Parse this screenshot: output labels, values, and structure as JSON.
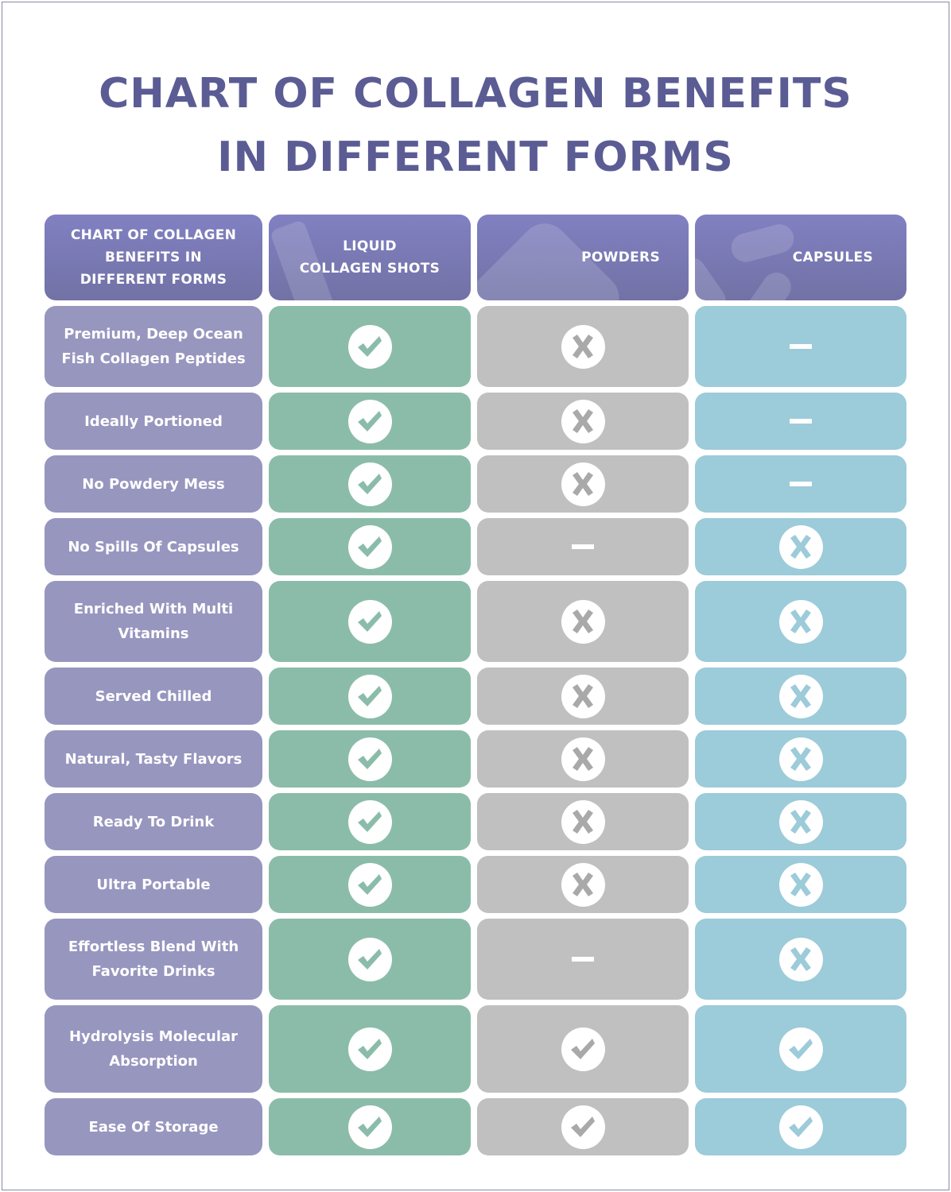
{
  "title_lines": [
    "CHART OF COLLAGEN BENEFITS",
    "IN DIFFERENT FORMS"
  ],
  "colors": {
    "title": "#5b5c94",
    "header": "#7e7cbd",
    "label": "#9796bf",
    "liquid": "#8bbcaa",
    "powders": "#c0c0c0",
    "capsules": "#9ccbd9"
  },
  "chart_data": {
    "type": "table",
    "corner_header": [
      "CHART OF COLLAGEN",
      "BENEFITS IN",
      "DIFFERENT FORMS"
    ],
    "columns": [
      {
        "label": [
          "LIQUID",
          "COLLAGEN SHOTS"
        ],
        "icon": "bottle-icon"
      },
      {
        "label": [
          "POWDERS"
        ],
        "icon": "powder-pile-icon"
      },
      {
        "label": [
          "CAPSULES"
        ],
        "icon": "capsule-icon"
      }
    ],
    "legend": {
      "yes": "check-icon",
      "no": "x-icon",
      "na": "dash-icon"
    },
    "rows": [
      {
        "label": [
          "Premium, Deep Ocean",
          "Fish Collagen Peptides"
        ],
        "values": [
          "yes",
          "no",
          "na"
        ]
      },
      {
        "label": [
          "Ideally Portioned"
        ],
        "values": [
          "yes",
          "no",
          "na"
        ]
      },
      {
        "label": [
          "No Powdery Mess"
        ],
        "values": [
          "yes",
          "no",
          "na"
        ]
      },
      {
        "label": [
          "No Spills Of Capsules"
        ],
        "values": [
          "yes",
          "na",
          "no"
        ]
      },
      {
        "label": [
          "Enriched With Multi",
          "Vitamins"
        ],
        "values": [
          "yes",
          "no",
          "no"
        ]
      },
      {
        "label": [
          "Served Chilled"
        ],
        "values": [
          "yes",
          "no",
          "no"
        ]
      },
      {
        "label": [
          "Natural, Tasty Flavors"
        ],
        "values": [
          "yes",
          "no",
          "no"
        ]
      },
      {
        "label": [
          "Ready To Drink"
        ],
        "values": [
          "yes",
          "no",
          "no"
        ]
      },
      {
        "label": [
          "Ultra Portable"
        ],
        "values": [
          "yes",
          "no",
          "no"
        ]
      },
      {
        "label": [
          "Effortless Blend With",
          "Favorite Drinks"
        ],
        "values": [
          "yes",
          "na",
          "no"
        ]
      },
      {
        "label": [
          "Hydrolysis Molecular",
          "Absorption"
        ],
        "values": [
          "yes",
          "yes",
          "yes"
        ]
      },
      {
        "label": [
          "Ease Of Storage"
        ],
        "values": [
          "yes",
          "yes",
          "yes"
        ]
      }
    ]
  }
}
